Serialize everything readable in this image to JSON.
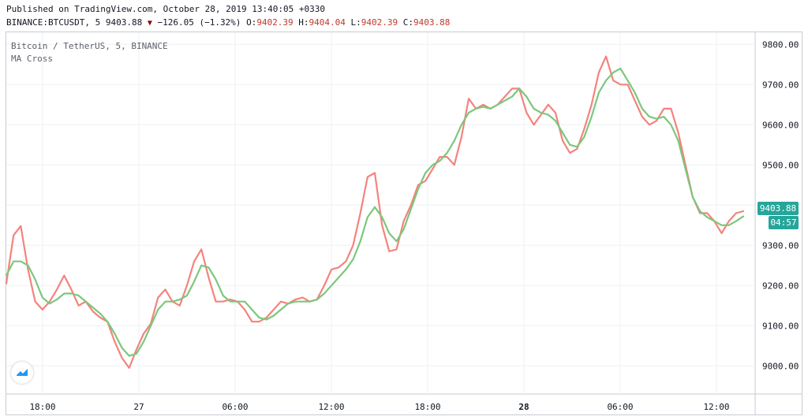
{
  "header": {
    "published": "Published on TradingView.com, October 28, 2019 13:40:05 +0330",
    "symbol_line": "BINANCE:BTCUSDT, 5 9403.88",
    "change": "−126.05 (−1.32%)",
    "o_label": "O:",
    "o_value": "9402.39",
    "h_label": "H:",
    "h_value": "9404.04",
    "l_label": "L:",
    "l_value": "9402.39",
    "c_label": "C:",
    "c_value": "9403.88"
  },
  "legend": {
    "instrument": "Bitcoin / TetherUS, 5, BINANCE",
    "indicator": "MA Cross"
  },
  "tags": {
    "price": "9403.88",
    "countdown": "04:57"
  },
  "colors": {
    "fast_ma": "#f4837d",
    "slow_ma": "#7cc77c",
    "grid": "#eef0f3",
    "tag": "#26a69a"
  },
  "chart_data": {
    "type": "line",
    "ylim": [
      8930,
      9830
    ],
    "y_ticks": [
      9000,
      9100,
      9200,
      9300,
      9400,
      9500,
      9600,
      9700,
      9800
    ],
    "y_tick_labels": [
      "9000.00",
      "9100.00",
      "9200.00",
      "9300.00",
      "9400.00",
      "9500.00",
      "9600.00",
      "9700.00",
      "9800.00"
    ],
    "x_tick_labels": [
      "18:00",
      "27",
      "06:00",
      "12:00",
      "18:00",
      "28",
      "06:00",
      "12:00"
    ],
    "series": [
      {
        "color": "#f4837d",
        "values": [
          9205,
          9325,
          9348,
          9240,
          9160,
          9140,
          9160,
          9190,
          9225,
          9190,
          9150,
          9160,
          9135,
          9120,
          9110,
          9060,
          9020,
          8995,
          9040,
          9080,
          9105,
          9170,
          9190,
          9160,
          9150,
          9200,
          9260,
          9290,
          9220,
          9160,
          9160,
          9165,
          9160,
          9140,
          9110,
          9110,
          9120,
          9140,
          9160,
          9155,
          9165,
          9170,
          9160,
          9165,
          9200,
          9240,
          9245,
          9260,
          9300,
          9380,
          9470,
          9480,
          9350,
          9285,
          9290,
          9360,
          9400,
          9450,
          9460,
          9490,
          9520,
          9520,
          9500,
          9570,
          9665,
          9640,
          9650,
          9640,
          9650,
          9670,
          9690,
          9690,
          9630,
          9600,
          9625,
          9650,
          9630,
          9560,
          9530,
          9540,
          9590,
          9650,
          9730,
          9770,
          9710,
          9700,
          9700,
          9660,
          9620,
          9600,
          9610,
          9640,
          9640,
          9580,
          9500,
          9420,
          9380,
          9380,
          9360,
          9330,
          9360,
          9380,
          9385
        ]
      },
      {
        "color": "#7cc77c",
        "values": [
          9225,
          9260,
          9260,
          9250,
          9215,
          9170,
          9155,
          9165,
          9180,
          9180,
          9175,
          9160,
          9145,
          9130,
          9110,
          9080,
          9045,
          9025,
          9030,
          9060,
          9100,
          9140,
          9160,
          9160,
          9165,
          9175,
          9210,
          9250,
          9245,
          9215,
          9175,
          9160,
          9160,
          9160,
          9140,
          9120,
          9115,
          9125,
          9140,
          9155,
          9160,
          9160,
          9160,
          9165,
          9180,
          9200,
          9220,
          9240,
          9265,
          9310,
          9370,
          9395,
          9370,
          9330,
          9310,
          9340,
          9390,
          9440,
          9480,
          9500,
          9510,
          9530,
          9560,
          9600,
          9630,
          9640,
          9645,
          9640,
          9650,
          9660,
          9670,
          9690,
          9670,
          9640,
          9630,
          9625,
          9610,
          9580,
          9550,
          9545,
          9570,
          9620,
          9680,
          9710,
          9730,
          9740,
          9710,
          9680,
          9640,
          9620,
          9615,
          9620,
          9600,
          9560,
          9490,
          9420,
          9385,
          9370,
          9360,
          9350,
          9350,
          9360,
          9372
        ]
      }
    ],
    "grid": true
  }
}
